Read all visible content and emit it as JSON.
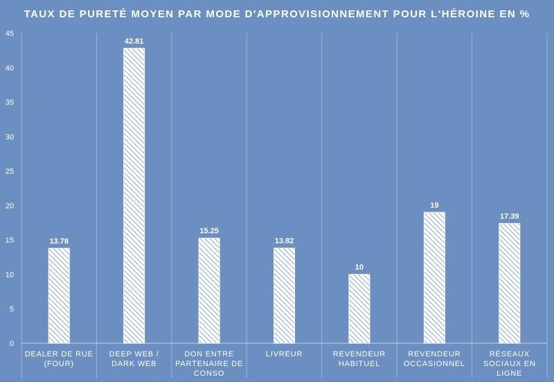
{
  "chart_data": {
    "type": "bar",
    "title": "TAUX DE PURETÉ MOYEN PAR MODE D'APPROVISIONNEMENT POUR L'HÉROINE EN %",
    "categories": [
      [
        "DEALER DE RUE",
        "(FOUR)"
      ],
      [
        "DEEP WEB /",
        "DARK WEB"
      ],
      [
        "DON ENTRE",
        "PARTENAIRE DE",
        "CONSO"
      ],
      [
        "LIVREUR"
      ],
      [
        "REVENDEUR",
        "HABITUEL"
      ],
      [
        "REVENDEUR",
        "OCCASIONNEL"
      ],
      [
        "RÉSEAUX",
        "SOCIAUX EN",
        "LIGNE"
      ]
    ],
    "values": [
      13.78,
      42.81,
      15.25,
      13.82,
      10,
      19,
      17.39
    ],
    "value_labels": [
      "13.78",
      "42.81",
      "15.25",
      "13.82",
      "10",
      "19",
      "17.39"
    ],
    "ylim": [
      0,
      45
    ],
    "yticks": [
      "0",
      "5",
      "10",
      "15",
      "20",
      "25",
      "30",
      "35",
      "40",
      "45"
    ],
    "grid": "vertical separators between categories",
    "bar_fill": "diagonal-hatch",
    "colors": {
      "background": "#6a8fc0",
      "bar": "#ffffff"
    }
  }
}
